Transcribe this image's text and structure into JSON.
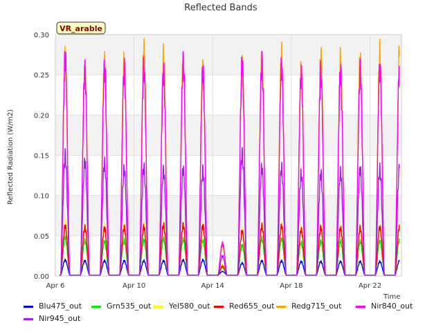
{
  "chart_data": {
    "type": "line",
    "title": "Reflected Bands",
    "ylabel": "Reflected Radiation (W/m2)",
    "xlabel": "Time",
    "badge": "VR_arable",
    "ylim": [
      0,
      0.3
    ],
    "yticks": [
      "0.00",
      "0.05",
      "0.10",
      "0.15",
      "0.20",
      "0.25",
      "0.30"
    ],
    "xticks": [
      "Apr 6",
      "Apr 10",
      "Apr 14",
      "Apr 18",
      "Apr 22"
    ],
    "x_days": [
      6.0,
      23.6
    ],
    "days": [
      6,
      7,
      8,
      9,
      10,
      11,
      12,
      13,
      14,
      15,
      16,
      17,
      18,
      19,
      20,
      21,
      22,
      23
    ],
    "grid": true,
    "series": [
      {
        "name": "Blu475_out",
        "color": "#0000ff",
        "values": [
          0.02,
          0.019,
          0.019,
          0.019,
          0.019,
          0.019,
          0.02,
          0.02,
          0.005,
          0.016,
          0.019,
          0.019,
          0.018,
          0.018,
          0.018,
          0.018,
          0.018,
          0.019
        ]
      },
      {
        "name": "Grn535_out",
        "color": "#00ee00",
        "values": [
          0.05,
          0.046,
          0.045,
          0.046,
          0.047,
          0.048,
          0.048,
          0.046,
          0.01,
          0.04,
          0.049,
          0.048,
          0.043,
          0.045,
          0.045,
          0.045,
          0.045,
          0.047
        ]
      },
      {
        "name": "Yel580_out",
        "color": "#ffff00",
        "values": [
          0.07,
          0.066,
          0.065,
          0.065,
          0.066,
          0.067,
          0.067,
          0.066,
          0.014,
          0.06,
          0.068,
          0.067,
          0.062,
          0.064,
          0.064,
          0.064,
          0.064,
          0.066
        ]
      },
      {
        "name": "Red655_out",
        "color": "#ff0000",
        "values": [
          0.065,
          0.063,
          0.062,
          0.063,
          0.064,
          0.066,
          0.066,
          0.065,
          0.012,
          0.058,
          0.065,
          0.065,
          0.06,
          0.063,
          0.062,
          0.062,
          0.063,
          0.065
        ]
      },
      {
        "name": "Redg715_out",
        "color": "#ffa500",
        "values": [
          0.285,
          0.27,
          0.28,
          0.282,
          0.298,
          0.29,
          0.28,
          0.27,
          0.04,
          0.275,
          0.285,
          0.292,
          0.27,
          0.288,
          0.285,
          0.285,
          0.294,
          0.295
        ]
      },
      {
        "name": "Nir840_out",
        "color": "#ff00ff",
        "values": [
          0.288,
          0.27,
          0.273,
          0.272,
          0.275,
          0.268,
          0.28,
          0.27,
          0.042,
          0.28,
          0.28,
          0.275,
          0.265,
          0.268,
          0.268,
          0.27,
          0.272,
          0.275
        ]
      },
      {
        "name": "Nir945_out",
        "color": "#a020f0",
        "values": [
          0.158,
          0.15,
          0.148,
          0.14,
          0.142,
          0.138,
          0.14,
          0.138,
          0.025,
          0.16,
          0.142,
          0.142,
          0.134,
          0.134,
          0.136,
          0.14,
          0.14,
          0.142
        ]
      }
    ]
  }
}
